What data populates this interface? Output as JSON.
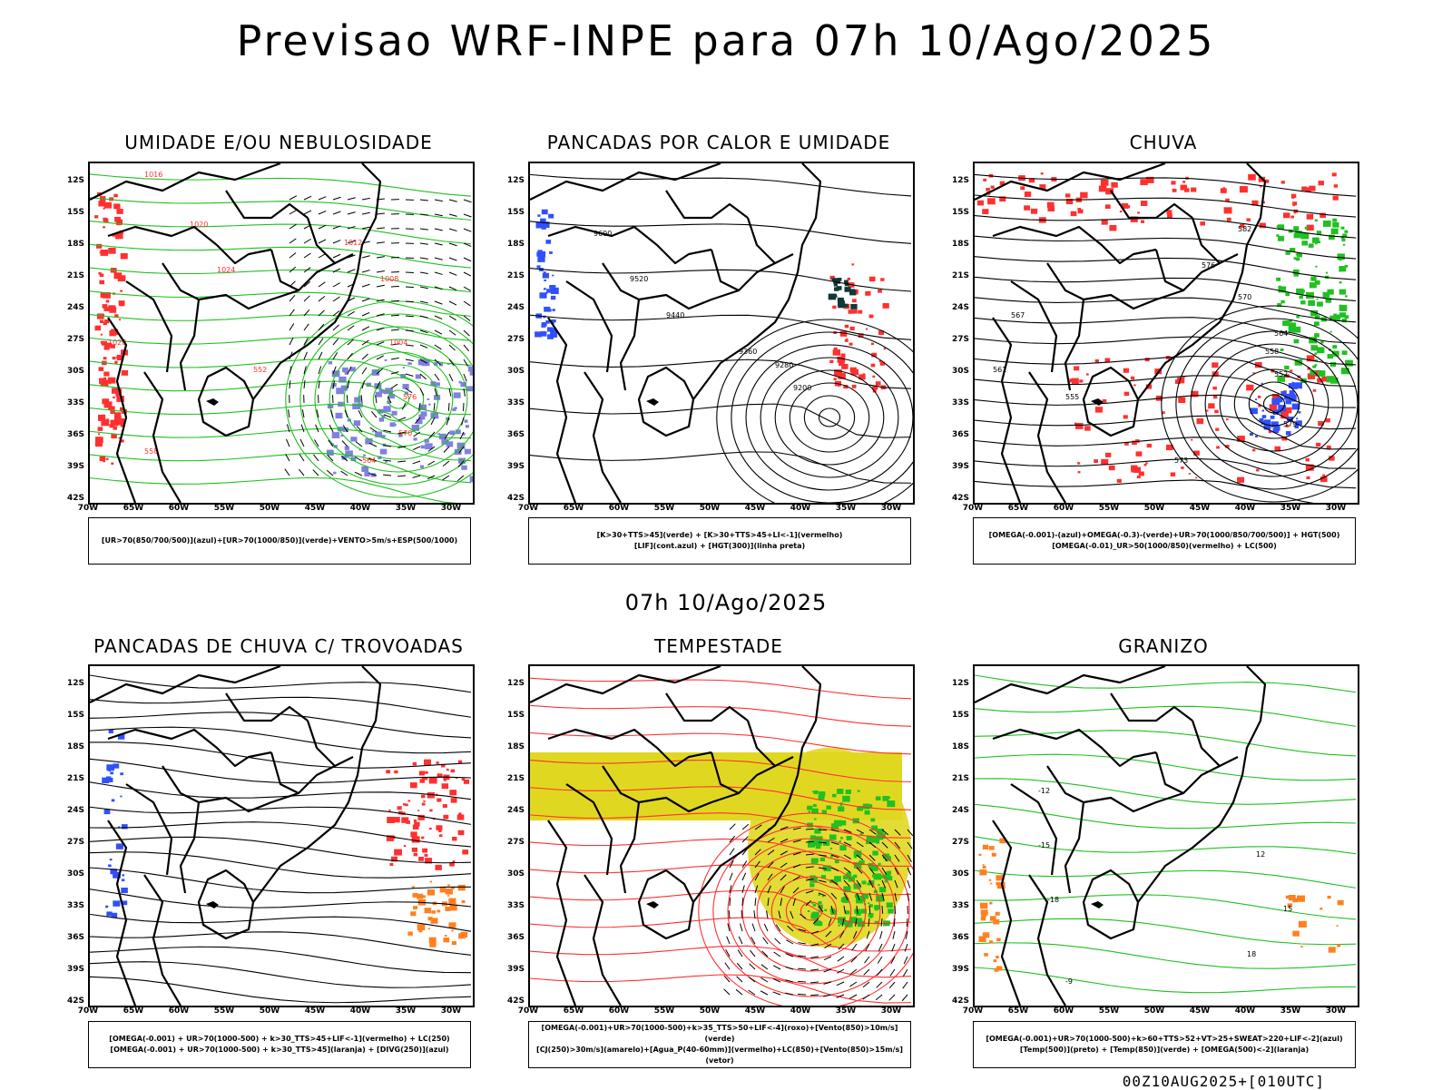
{
  "main_title": "Previsao WRF-INPE  para 07h 10/Ago/2025",
  "mid_title": "07h 10/Ago/2025",
  "footer": "00Z10AUG2025+[010UTC]",
  "lat_labels": [
    "12S",
    "15S",
    "18S",
    "21S",
    "24S",
    "27S",
    "30S",
    "33S",
    "36S",
    "39S",
    "42S"
  ],
  "lon_labels": [
    "70W",
    "65W",
    "60W",
    "55W",
    "50W",
    "45W",
    "40W",
    "35W",
    "30W"
  ],
  "panels": [
    {
      "title": "UMIDADE E/OU NEBULOSIDADE",
      "legend": [
        "[UR>70(850/700/500)](azul)+[UR>70(1000/850)](verde)+VENTO>5m/s+ESP(500/1000)"
      ],
      "contour_labels": [
        "1016",
        "1020",
        "1024",
        "1012",
        "1008",
        "1004",
        "576",
        "570",
        "564",
        "558",
        "552",
        "1028"
      ]
    },
    {
      "title": "PANCADAS POR CALOR E UMIDADE",
      "legend": [
        "[K>30+TTS>45](verde) + [K>30+TTS>45+LI<-1](vermelho)",
        "[LIF](cont.azul) + [HGT(300)](linha preta)"
      ],
      "contour_labels": [
        "9600",
        "9520",
        "9440",
        "9360",
        "9280",
        "9200"
      ]
    },
    {
      "title": "CHUVA",
      "legend": [
        "[OMEGA(-0.001)-(azul)+OMEGA(-0.3)-(verde)+UR>70(1000/850/700/500)] + HGT(500)",
        "[OMEGA(-0.01)_UR>50(1000/850)(vermelho) + LC(500)"
      ],
      "contour_labels": [
        "582",
        "576",
        "570",
        "564",
        "558",
        "552",
        "579",
        "573",
        "567",
        "561",
        "555"
      ]
    },
    {
      "title": "PANCADAS DE CHUVA C/ TROVOADAS",
      "legend": [
        "[OMEGA(-0.001) + UR>70(1000-500) + k>30_TTS>45+LIF<-1](vermelho) + LC(250)",
        "[OMEGA(-0.001) + UR>70(1000-500) + k>30_TTS>45](laranja) + [DIVG(250)](azul)"
      ],
      "contour_labels": []
    },
    {
      "title": "TEMPESTADE",
      "legend": [
        "[OMEGA(-0.001)+UR>70(1000-500)+k>35_TTS>50+LIF<-4](roxo)+[Vento(850)>10m/s](verde)",
        "[CJ(250)>30m/s](amarelo)+[Agua_P(40-60mm)](vermelho)+LC(850)+[Vento(850)>15m/s](vetor)"
      ],
      "contour_labels": []
    },
    {
      "title": "GRANIZO",
      "legend": [
        "[OMEGA(-0.001)+UR>70(1000-500)+k>60+TTS>52+VT>25+SWEAT>220+LIF<-2](azul)",
        "[Temp(500)](preto) + [Temp(850)](verde) + [OMEGA(500)<-2](laranja)"
      ],
      "contour_labels": [
        "-12",
        "-15",
        "-18",
        "-9",
        "12",
        "15",
        "18"
      ]
    }
  ],
  "colors": {
    "blue": "#3050ff",
    "green": "#20c020",
    "red": "#ff3030",
    "orange": "#ff8020",
    "yellow": "#e0d820",
    "purple": "#8080e0",
    "darkteal": "#103838"
  }
}
